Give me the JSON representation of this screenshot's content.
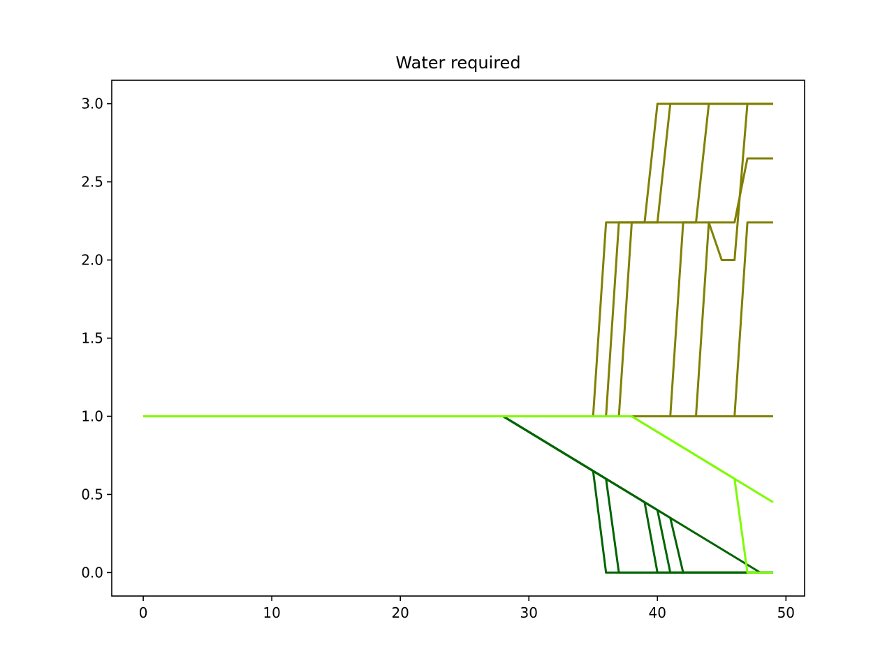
{
  "chart_data": {
    "type": "line",
    "title": "Water required",
    "xlabel": "",
    "ylabel": "",
    "xlim": [
      -2.45,
      51.45
    ],
    "ylim": [
      -0.15,
      3.15
    ],
    "xticks": [
      0,
      10,
      20,
      30,
      40,
      50
    ],
    "yticks": [
      0.0,
      0.5,
      1.0,
      1.5,
      2.0,
      2.5,
      3.0
    ],
    "xtick_labels": [
      "0",
      "10",
      "20",
      "30",
      "40",
      "50"
    ],
    "ytick_labels": [
      "0.0",
      "0.5",
      "1.0",
      "1.5",
      "2.0",
      "2.5",
      "3.0"
    ],
    "grid": false,
    "legend": "none",
    "series": [
      {
        "color": "#808000",
        "points": [
          [
            0,
            1
          ],
          [
            35,
            1
          ],
          [
            36,
            2.24
          ],
          [
            40,
            2.24
          ],
          [
            41,
            3
          ],
          [
            49,
            3
          ]
        ]
      },
      {
        "color": "#808000",
        "points": [
          [
            0,
            1
          ],
          [
            36,
            1
          ],
          [
            37,
            2.24
          ],
          [
            39,
            2.24
          ],
          [
            40,
            3
          ],
          [
            49,
            3
          ]
        ]
      },
      {
        "color": "#808000",
        "points": [
          [
            0,
            1
          ],
          [
            37,
            1
          ],
          [
            38,
            2.24
          ],
          [
            43,
            2.24
          ],
          [
            44,
            3
          ],
          [
            49,
            3
          ]
        ]
      },
      {
        "color": "#808000",
        "points": [
          [
            0,
            1
          ],
          [
            41,
            1
          ],
          [
            42,
            2.24
          ],
          [
            44,
            2.24
          ],
          [
            45,
            2
          ],
          [
            46,
            2
          ],
          [
            47,
            3
          ],
          [
            49,
            3
          ]
        ]
      },
      {
        "color": "#808000",
        "points": [
          [
            0,
            1
          ],
          [
            43,
            1
          ],
          [
            44,
            2.24
          ],
          [
            46,
            2.24
          ],
          [
            47,
            2.65
          ],
          [
            49,
            2.65
          ]
        ]
      },
      {
        "color": "#808000",
        "points": [
          [
            0,
            1
          ],
          [
            46,
            1
          ],
          [
            47,
            2.24
          ],
          [
            49,
            2.24
          ]
        ]
      },
      {
        "color": "#808000",
        "points": [
          [
            0,
            1
          ],
          [
            49,
            1
          ]
        ]
      },
      {
        "color": "#006400",
        "points": [
          [
            0,
            1
          ],
          [
            28,
            1
          ],
          [
            35,
            0.65
          ],
          [
            36,
            0
          ],
          [
            49,
            0
          ]
        ]
      },
      {
        "color": "#006400",
        "points": [
          [
            0,
            1
          ],
          [
            28,
            1
          ],
          [
            36,
            0.6
          ],
          [
            37,
            0
          ],
          [
            49,
            0
          ]
        ]
      },
      {
        "color": "#006400",
        "points": [
          [
            0,
            1
          ],
          [
            28,
            1
          ],
          [
            39,
            0.45
          ],
          [
            40,
            0
          ],
          [
            49,
            0
          ]
        ]
      },
      {
        "color": "#006400",
        "points": [
          [
            0,
            1
          ],
          [
            28,
            1
          ],
          [
            40,
            0.4
          ],
          [
            41,
            0
          ],
          [
            49,
            0
          ]
        ]
      },
      {
        "color": "#006400",
        "points": [
          [
            0,
            1
          ],
          [
            28,
            1
          ],
          [
            41,
            0.35
          ],
          [
            42,
            0
          ],
          [
            49,
            0
          ]
        ]
      },
      {
        "color": "#006400",
        "points": [
          [
            0,
            1
          ],
          [
            28,
            1
          ],
          [
            48,
            0
          ],
          [
            49,
            0
          ]
        ]
      },
      {
        "color": "#7CFC00",
        "points": [
          [
            0,
            1
          ],
          [
            38,
            1
          ],
          [
            46,
            0.6
          ],
          [
            47,
            0
          ],
          [
            49,
            0
          ]
        ]
      },
      {
        "color": "#7CFC00",
        "points": [
          [
            0,
            1
          ],
          [
            38,
            1
          ],
          [
            49,
            0.45
          ]
        ]
      }
    ]
  }
}
